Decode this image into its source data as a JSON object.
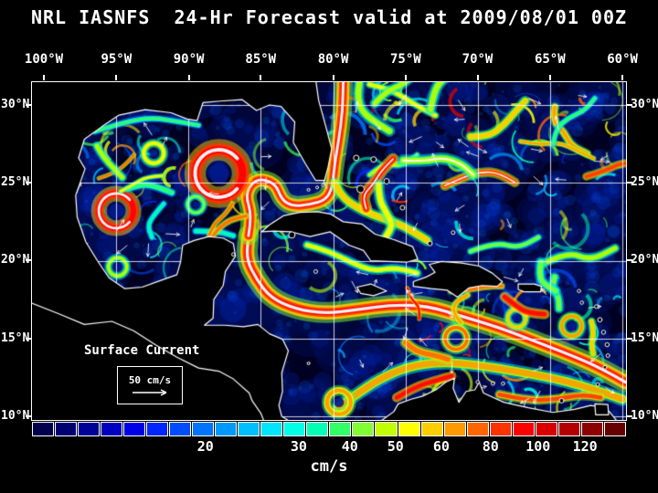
{
  "title": "NRL IASNFS  24-Hr Forecast valid at 2009/08/01 00Z",
  "map": {
    "lon_labels": [
      {
        "text": "100°W",
        "f": 0.02
      },
      {
        "text": "95°W",
        "f": 0.142
      },
      {
        "text": "90°W",
        "f": 0.264
      },
      {
        "text": "85°W",
        "f": 0.385
      },
      {
        "text": "80°W",
        "f": 0.507
      },
      {
        "text": "75°W",
        "f": 0.629
      },
      {
        "text": "70°W",
        "f": 0.75
      },
      {
        "text": "65°W",
        "f": 0.872
      },
      {
        "text": "60°W",
        "f": 0.994
      }
    ],
    "lat_labels": [
      {
        "text": "30°N",
        "f": 0.068
      },
      {
        "text": "25°N",
        "f": 0.297
      },
      {
        "text": "20°N",
        "f": 0.528
      },
      {
        "text": "15°N",
        "f": 0.759
      },
      {
        "text": "10°N",
        "f": 0.989
      }
    ],
    "annotation": {
      "label": "Surface Current",
      "scale_label": "50 cm/s"
    }
  },
  "colorbar": {
    "units": "cm/s",
    "colors": [
      "#00004D",
      "#000073",
      "#000099",
      "#0000BF",
      "#0000E6",
      "#0026FF",
      "#004DFF",
      "#0073FF",
      "#0099FF",
      "#00BFFF",
      "#00E6FF",
      "#00FFE6",
      "#00FFB3",
      "#33FF66",
      "#80FF33",
      "#BFFF00",
      "#FFFF00",
      "#FFCC00",
      "#FF9900",
      "#FF6600",
      "#FF3300",
      "#FF0000",
      "#D90000",
      "#B30000",
      "#8C0000",
      "#660000"
    ],
    "ticks": [
      {
        "label": "20",
        "f": 0.292
      },
      {
        "label": "30",
        "f": 0.449
      },
      {
        "label": "40",
        "f": 0.535
      },
      {
        "label": "50",
        "f": 0.612
      },
      {
        "label": "60",
        "f": 0.689
      },
      {
        "label": "80",
        "f": 0.772
      },
      {
        "label": "100",
        "f": 0.852
      },
      {
        "label": "120",
        "f": 0.931
      }
    ]
  }
}
